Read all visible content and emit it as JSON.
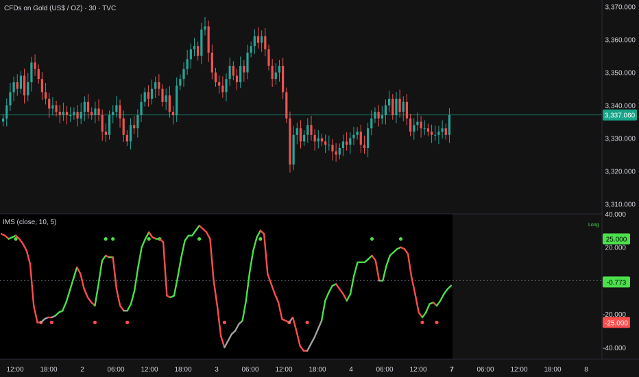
{
  "header": {
    "price_title": "CFDs on Gold (US$ / OZ) · 30 · TVC",
    "ims_title": "IMS (close, 10, 5)"
  },
  "colors": {
    "background": "#131313",
    "ims_panel_background": "#000000",
    "up": "#26a69a",
    "down": "#ef5350",
    "osc_up": "#4be04b",
    "osc_down": "#ff4d4d",
    "osc_neutral": "#a3a3a3",
    "text": "#d1d4dc",
    "last_price_badge": "#17a589"
  },
  "chart_data": [
    {
      "type": "candlestick",
      "title": "CFDs on Gold (US$ / OZ) · 30 · TVC",
      "x_axis": {
        "tick_labels": [
          "12:00",
          "18:00",
          "2",
          "06:00",
          "12:00",
          "18:00",
          "3",
          "06:00",
          "12:00",
          "18:00",
          "4",
          "06:00",
          "12:00",
          "7",
          "06:00",
          "12:00",
          "18:00",
          "8"
        ],
        "bold_ticks": [
          "7"
        ]
      },
      "y_axis": {
        "tick_labels": [
          "3,370.000",
          "3,360.000",
          "3,350.000",
          "3,340.000",
          "3,330.000",
          "3,320.000",
          "3,310.000"
        ],
        "ylim": [
          3307,
          3372
        ]
      },
      "last_price": 3337.06,
      "last_price_label": "3,337.060",
      "closes": [
        3336,
        3340,
        3344,
        3347,
        3345,
        3349,
        3343,
        3347,
        3353,
        3351,
        3348,
        3344,
        3342,
        3339,
        3340,
        3338,
        3337,
        3338,
        3337,
        3337,
        3338,
        3336,
        3338,
        3341,
        3338,
        3337,
        3339,
        3337,
        3332,
        3331,
        3337,
        3338,
        3340,
        3336,
        3331,
        3329,
        3334,
        3333,
        3337,
        3341,
        3344,
        3342,
        3345,
        3347,
        3345,
        3341,
        3343,
        3338,
        3337,
        3346,
        3348,
        3351,
        3354,
        3357,
        3358,
        3355,
        3363,
        3364,
        3356,
        3350,
        3347,
        3346,
        3344,
        3348,
        3352,
        3349,
        3347,
        3352,
        3350,
        3356,
        3358,
        3361,
        3359,
        3361,
        3357,
        3352,
        3348,
        3350,
        3352,
        3344,
        3336,
        3322,
        3331,
        3333,
        3329,
        3331,
        3334,
        3331,
        3329,
        3330,
        3329,
        3328,
        3328,
        3326,
        3325,
        3327,
        3329,
        3328,
        3330,
        3331,
        3332,
        3328,
        3327,
        3333,
        3336,
        3338,
        3336,
        3337,
        3340,
        3342,
        3337,
        3342,
        3338,
        3341,
        3336,
        3332,
        3334,
        3335,
        3333,
        3333,
        3332,
        3331,
        3331,
        3332,
        3333,
        3331,
        3337
      ]
    },
    {
      "type": "line",
      "title": "IMS (close, 10, 5)",
      "y_axis": {
        "tick_labels": [
          "40.000",
          "20.000",
          "-20.000",
          "-40.000"
        ],
        "ylim": [
          -47,
          40
        ]
      },
      "levels": [
        {
          "value": 25,
          "label": "25.000"
        },
        {
          "value": -25,
          "label": "-25.000"
        }
      ],
      "current_value": -0.773,
      "current_label": "-0.773",
      "legend_word": "Long",
      "values": [
        28,
        27,
        25,
        26,
        27,
        25,
        22,
        18,
        10,
        -15,
        -25,
        -25,
        -23,
        -22,
        -22,
        -21,
        -19,
        -18,
        -13,
        -6,
        1,
        8,
        4,
        -5,
        -10,
        -13,
        -15,
        -2,
        12,
        15,
        14,
        14,
        -5,
        -15,
        -18,
        -18,
        -14,
        -6,
        8,
        20,
        25,
        29,
        26,
        25,
        25,
        23,
        -9,
        -10,
        -9,
        2,
        14,
        24,
        27,
        27,
        30,
        33,
        31,
        29,
        25,
        0,
        -15,
        -33,
        -40,
        -36,
        -32,
        -30,
        -26,
        -24,
        -12,
        5,
        18,
        26,
        30,
        28,
        4,
        -2,
        -8,
        -13,
        -23,
        -24,
        -25,
        -22,
        -30,
        -39,
        -42,
        -42,
        -38,
        -34,
        -29,
        -24,
        -12,
        -7,
        -3,
        -2,
        -5,
        -8,
        -12,
        -8,
        3,
        11,
        11,
        11,
        13,
        15,
        12,
        0,
        0,
        9,
        15,
        17,
        19,
        20,
        19,
        16,
        2,
        -8,
        -19,
        -22,
        -19,
        -14,
        -13,
        -15,
        -12,
        -8,
        -5,
        -3
      ]
    }
  ]
}
